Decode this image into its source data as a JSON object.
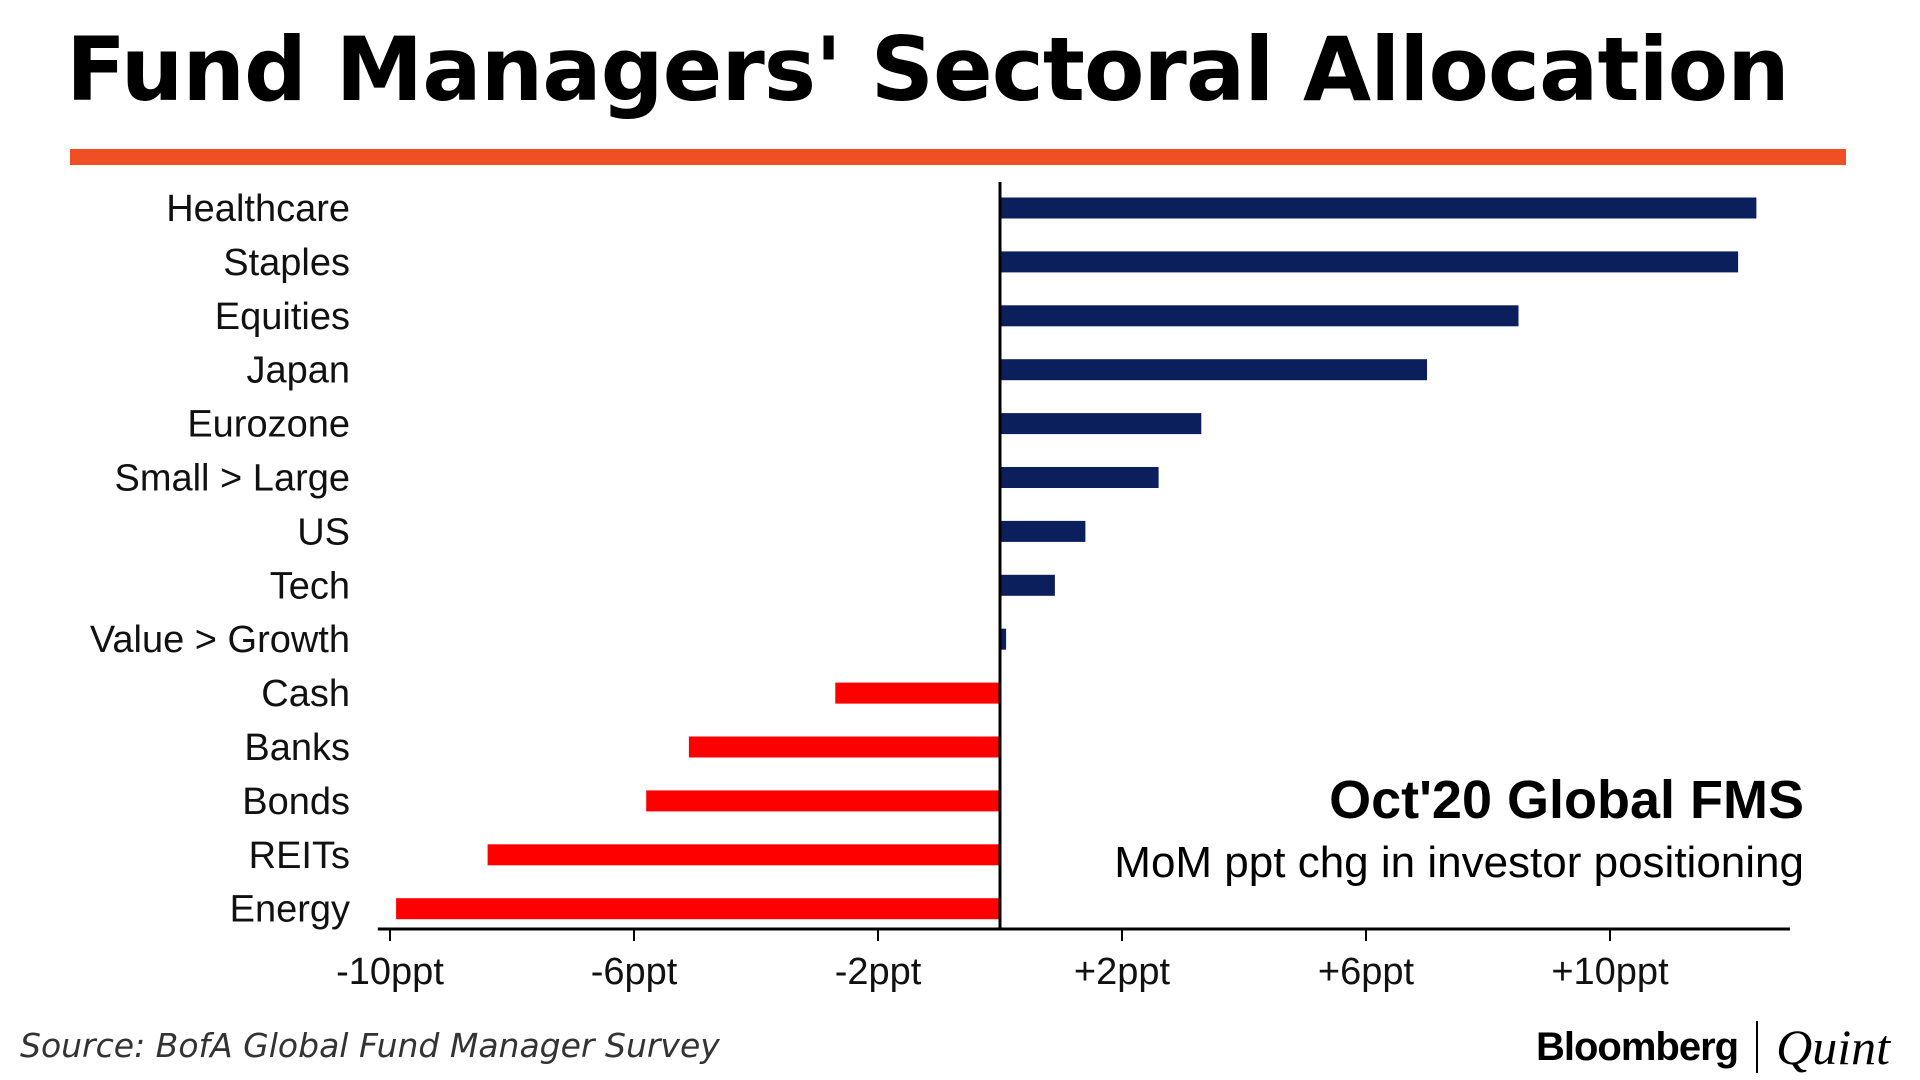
{
  "header": {
    "title": "Fund Managers' Sectoral Allocation"
  },
  "footer": {
    "source": "Source: BofA Global Fund Manager Survey",
    "brand_primary": "Bloomberg",
    "brand_secondary": "Quint"
  },
  "colors": {
    "accent_rule": "#f04e23",
    "positive_bar": "#0b1f5c",
    "negative_bar": "#ff0000"
  },
  "chart_data": {
    "type": "bar",
    "orientation": "horizontal",
    "annotation_title": "Oct'20 Global FMS",
    "annotation_subtitle": "MoM ppt chg in investor positioning",
    "categories": [
      "Healthcare",
      "Staples",
      "Equities",
      "Japan",
      "Eurozone",
      "Small > Large",
      "US",
      "Tech",
      "Value > Growth",
      "Cash",
      "Banks",
      "Bonds",
      "REITs",
      "Energy"
    ],
    "values": [
      12.4,
      12.1,
      8.5,
      7.0,
      3.3,
      2.6,
      1.4,
      0.9,
      0.1,
      -2.7,
      -5.1,
      -5.8,
      -8.4,
      -9.9
    ],
    "xlim": [
      -10,
      13
    ],
    "xticks": [
      -10,
      -6,
      -2,
      2,
      6,
      10
    ],
    "xtick_labels": [
      "-10ppt",
      "-6ppt",
      "-2ppt",
      "+2ppt",
      "+6ppt",
      "+10ppt"
    ],
    "xlabel": "",
    "ylabel": "",
    "grid": false,
    "legend": "none"
  }
}
